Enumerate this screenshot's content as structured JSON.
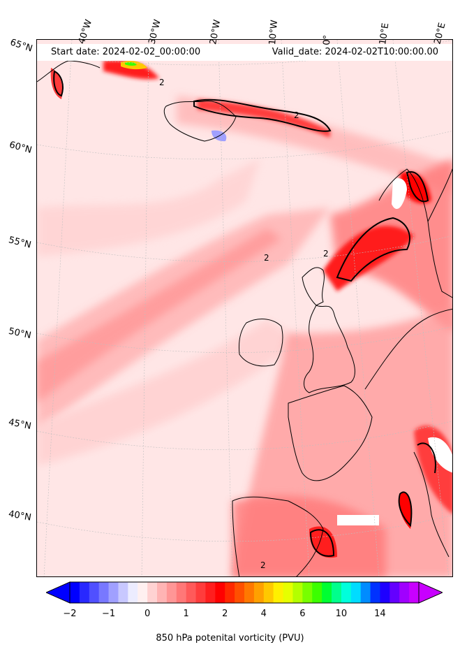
{
  "header": {
    "start_label": "Start date: 2024-02-02_00:00:00",
    "valid_label": "Valid_date: 2024-02-02T10:00:00.00"
  },
  "longitude_labels": [
    "40°W",
    "30°W",
    "20°W",
    "10°W",
    "0°",
    "10°E",
    "20°E"
  ],
  "latitude_labels": [
    "65°N",
    "60°N",
    "55°N",
    "50°N",
    "45°N",
    "40°N"
  ],
  "colorbar": {
    "title": "850 hPa potenital vorticity (PVU)",
    "tick_labels": [
      "−2",
      "−1",
      "0",
      "1",
      "2",
      "4",
      "6",
      "10",
      "14"
    ],
    "colors": [
      "#0000ff",
      "#2828ff",
      "#5050ff",
      "#7878ff",
      "#a0a0ff",
      "#c8c8ff",
      "#ececff",
      "#fff0f0",
      "#ffd2d2",
      "#ffb4b4",
      "#ff9696",
      "#ff7878",
      "#ff5a5a",
      "#ff3c3c",
      "#ff1e1e",
      "#ff0000",
      "#ff2800",
      "#ff5000",
      "#ff7800",
      "#ffa000",
      "#ffc800",
      "#fff000",
      "#e6ff00",
      "#b4ff00",
      "#78ff00",
      "#3cff00",
      "#00ff32",
      "#00ff8c",
      "#00ffdc",
      "#00dcff",
      "#008cff",
      "#0032ff",
      "#1e00ff",
      "#6400ff",
      "#a000ff",
      "#c800ff"
    ],
    "extend_min_color": "#0000ff",
    "extend_max_color": "#c800ff"
  },
  "contour_label": "2",
  "colors": {
    "background_pv": "#ffe6e6",
    "coast_line": "#000000",
    "strong_contour": "#000000"
  }
}
